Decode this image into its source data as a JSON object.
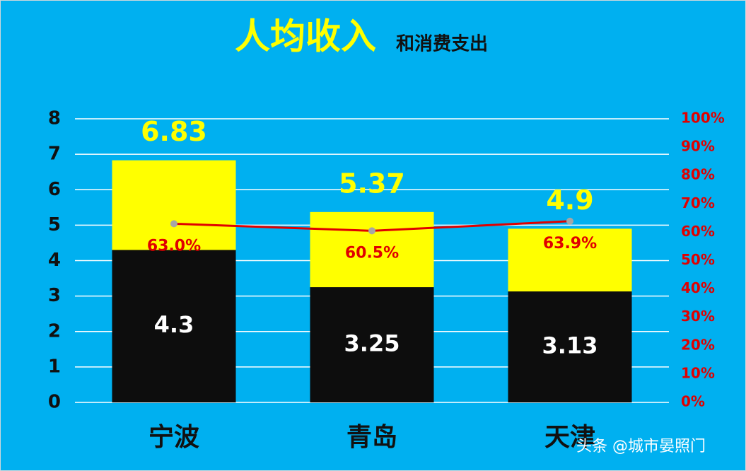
{
  "chart_data": {
    "type": "bar",
    "title": "人均收入",
    "subtitle": "和消费支出",
    "categories": [
      "宁波",
      "青岛",
      "天津"
    ],
    "series": [
      {
        "type": "bar",
        "color": "#ffff00",
        "label_color": "#ffff00",
        "values": [
          6.83,
          5.37,
          4.9
        ]
      },
      {
        "type": "bar",
        "color": "#0d0d0d",
        "label_color": "#ffffff",
        "values": [
          4.3,
          3.25,
          3.13
        ]
      },
      {
        "type": "line",
        "axis": "y2",
        "color": "#e00000",
        "marker_color": "#a6a6a6",
        "label_color": "#e00000",
        "values": [
          63.0,
          60.5,
          63.9
        ],
        "value_labels": [
          "63.0%",
          "60.5%",
          "63.9%"
        ]
      }
    ],
    "ylim": [
      0,
      8
    ],
    "yticks": [
      0,
      1,
      2,
      3,
      4,
      5,
      6,
      7,
      8
    ],
    "y2lim": [
      0,
      100
    ],
    "y2ticks": [
      {
        "value": 0,
        "label": "0%"
      },
      {
        "value": 10,
        "label": "10%"
      },
      {
        "value": 20,
        "label": "20%"
      },
      {
        "value": 30,
        "label": "30%"
      },
      {
        "value": 40,
        "label": "40%"
      },
      {
        "value": 50,
        "label": "50%"
      },
      {
        "value": 60,
        "label": "60%"
      },
      {
        "value": 70,
        "label": "70%"
      },
      {
        "value": 80,
        "label": "80%"
      },
      {
        "value": 90,
        "label": "90%"
      },
      {
        "value": 100,
        "label": "100%"
      }
    ],
    "grid": true,
    "watermark": "头条 @城市晏照门"
  }
}
